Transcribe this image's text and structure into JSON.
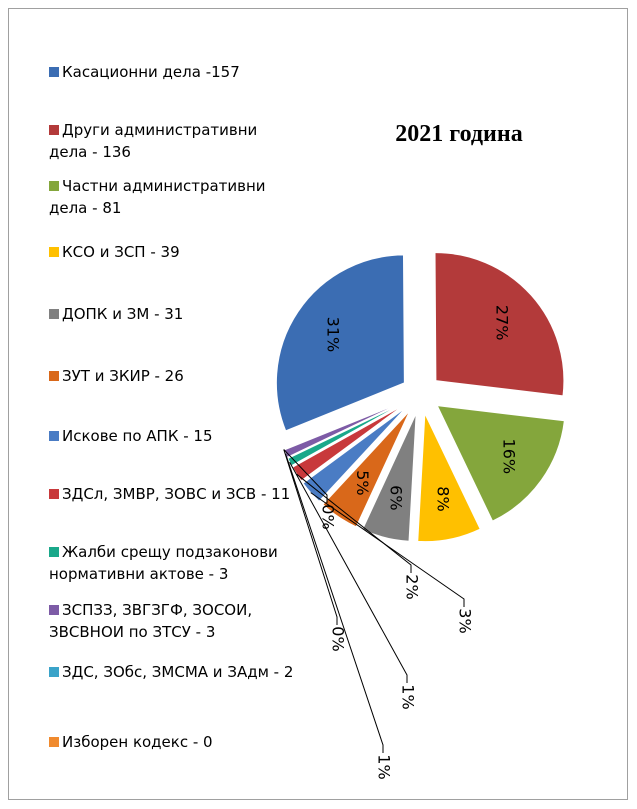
{
  "chart_data": {
    "type": "pie",
    "title": "2021 година",
    "categories": [
      "Касационни дела -157",
      "Други административни дела - 136",
      "Частни административни дела - 81",
      "КСО и ЗСП - 39",
      "ДОПК и ЗМ - 31",
      "ЗУТ и ЗКИР - 26",
      "Искове по АПК - 15",
      "ЗДСл, ЗМВР, ЗОВС и ЗСВ - 11",
      "Жалби срещу подзаконови нормативни актове - 3",
      "ЗСПЗЗ, ЗВГЗГФ, ЗОСОИ, ЗВСВНОИ по ЗТСУ - 3",
      "ЗДС, ЗОбс, ЗМСМА и ЗАдм - 2",
      "Изборен кодекс - 0"
    ],
    "values": [
      31,
      27,
      16,
      8,
      6,
      5,
      3,
      2,
      1,
      1,
      0,
      0
    ],
    "value_labels": [
      "31%",
      "27%",
      "16%",
      "8%",
      "6%",
      "5%",
      "3%",
      "2%",
      "1%",
      "1%",
      "0%",
      "0%"
    ],
    "colors": [
      "#3b6db3",
      "#b33a3a",
      "#84a63c",
      "#ffc000",
      "#808080",
      "#d9681a",
      "#4a7cc4",
      "#c8393b",
      "#1aa88a",
      "#7d5ba6",
      "#3aa3c9",
      "#f08a2e"
    ],
    "legend": "left"
  }
}
